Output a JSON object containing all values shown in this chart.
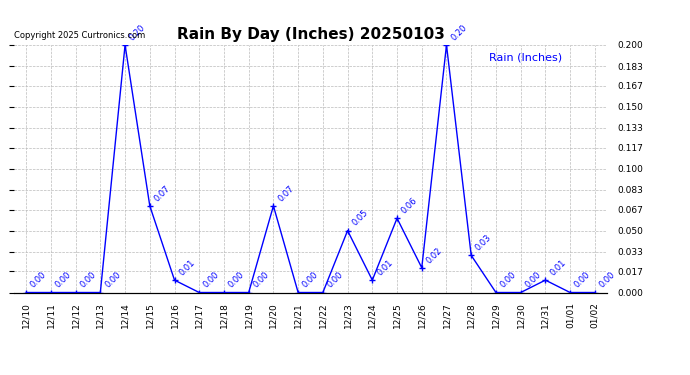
{
  "title": "Rain By Day (Inches) 20250103",
  "copyright_text": "Copyright 2025 Curtronics.com",
  "legend_text": "Rain (Inches)",
  "dates": [
    "12/10",
    "12/11",
    "12/12",
    "12/13",
    "12/14",
    "12/15",
    "12/16",
    "12/17",
    "12/18",
    "12/19",
    "12/20",
    "12/21",
    "12/22",
    "12/23",
    "12/24",
    "12/25",
    "12/26",
    "12/27",
    "12/28",
    "12/29",
    "12/30",
    "12/31",
    "01/01",
    "01/02"
  ],
  "values": [
    0.0,
    0.0,
    0.0,
    0.0,
    0.2,
    0.07,
    0.01,
    0.0,
    0.0,
    0.0,
    0.07,
    0.0,
    0.0,
    0.05,
    0.01,
    0.06,
    0.02,
    0.2,
    0.03,
    0.0,
    0.0,
    0.01,
    0.0,
    0.0
  ],
  "ylim": [
    0.0,
    0.2
  ],
  "yticks": [
    0.0,
    0.017,
    0.033,
    0.05,
    0.067,
    0.083,
    0.1,
    0.117,
    0.133,
    0.15,
    0.167,
    0.183,
    0.2
  ],
  "line_color": "blue",
  "label_color": "blue",
  "title_color": "black",
  "grid_color": "#bbbbbb",
  "background_color": "white",
  "title_fontsize": 11,
  "label_fontsize": 6,
  "tick_fontsize": 6.5,
  "copyright_fontsize": 6,
  "legend_fontsize": 8
}
